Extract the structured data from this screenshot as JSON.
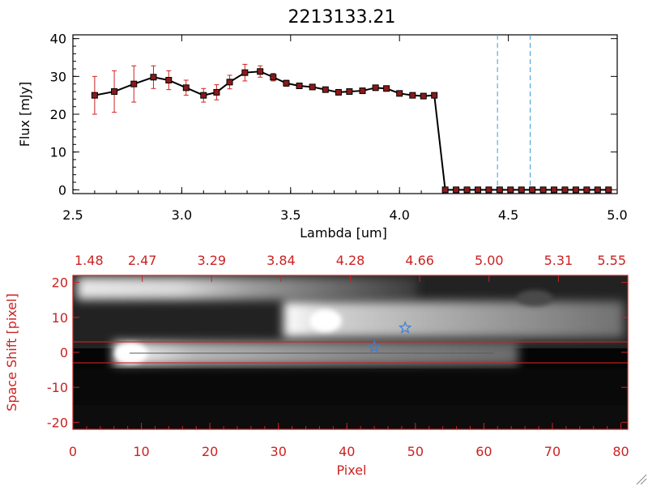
{
  "colors": {
    "accent_red": "#cc2222",
    "series_line": "#000000",
    "marker_fill": "#8a1a1a",
    "error_bar": "#d42020",
    "dashed_marker": "#3aa0d8",
    "star": "#3a7fd8",
    "axis_black": "#000000"
  },
  "chart_data": [
    {
      "type": "line",
      "title": "2213133.21",
      "xlabel": "Lambda [um]",
      "ylabel": "Flux [mJy]",
      "xlim": [
        2.5,
        5.0
      ],
      "ylim": [
        -1,
        41
      ],
      "x_ticks": [
        "2.5",
        "3.0",
        "3.5",
        "4.0",
        "4.5",
        "5.0"
      ],
      "y_ticks": [
        "0",
        "10",
        "20",
        "30",
        "40"
      ],
      "vertical_dashed_lines": [
        4.45,
        4.6
      ],
      "series": [
        {
          "x": [
            2.6,
            2.69,
            2.78,
            2.87,
            2.94,
            3.02,
            3.1,
            3.16,
            3.22,
            3.29,
            3.36,
            3.42,
            3.48,
            3.54,
            3.6,
            3.66,
            3.72,
            3.77,
            3.83,
            3.89,
            3.94,
            4.0,
            4.06,
            4.11,
            4.16,
            4.21,
            4.26,
            4.31,
            4.36,
            4.41,
            4.46,
            4.51,
            4.56,
            4.61,
            4.66,
            4.71,
            4.76,
            4.81,
            4.86,
            4.91,
            4.96
          ],
          "y": [
            25,
            26,
            28,
            29.8,
            29,
            27,
            25,
            25.8,
            28.5,
            31,
            31.3,
            29.8,
            28.2,
            27.5,
            27.2,
            26.5,
            25.8,
            26,
            26.2,
            27,
            26.8,
            25.5,
            25,
            24.8,
            25,
            0,
            0,
            0,
            0,
            0,
            0,
            0,
            0,
            0,
            0,
            0,
            0,
            0,
            0,
            0,
            0
          ],
          "err": [
            5,
            5.5,
            4.8,
            3,
            2.5,
            2,
            1.8,
            2,
            1.8,
            2.2,
            1.5,
            1,
            0.8,
            0.7,
            0.6,
            0.6,
            0.6,
            0.6,
            0.6,
            0.6,
            0.6,
            0.5,
            0.5,
            0.5,
            0.5,
            0,
            0,
            0,
            0,
            0,
            0,
            0,
            0,
            0,
            0,
            0,
            0,
            0,
            0,
            0,
            0
          ]
        }
      ]
    },
    {
      "type": "heatmap",
      "xlabel": "Pixel",
      "ylabel": "Space Shift [pixel]",
      "xlim": [
        0,
        81
      ],
      "ylim": [
        -22,
        22
      ],
      "x_ticks": [
        "0",
        "10",
        "20",
        "30",
        "40",
        "50",
        "60",
        "70",
        "80"
      ],
      "y_ticks": [
        "-20",
        "-10",
        "0",
        "10",
        "20"
      ],
      "top_axis_ticks": [
        "1.48",
        "2.47",
        "3.29",
        "3.84",
        "4.28",
        "4.66",
        "5.00",
        "5.31",
        "5.55"
      ],
      "extraction_window": [
        -3,
        3
      ],
      "stars": [
        {
          "x": 48.5,
          "y": 7
        },
        {
          "x": 44,
          "y": 1.5
        }
      ]
    }
  ]
}
